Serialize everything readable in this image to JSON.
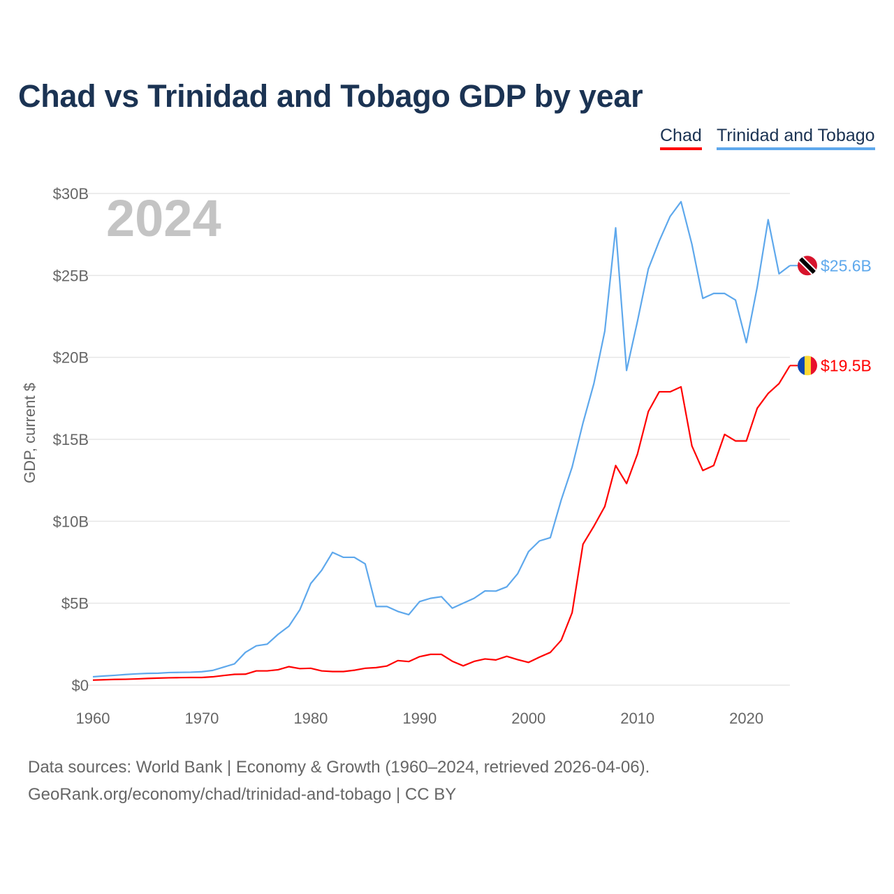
{
  "chart_data": {
    "type": "line",
    "title": "Chad vs Trinidad and Tobago GDP by year",
    "ylabel": "GDP, current $",
    "xlabel": "",
    "year_watermark": "2024",
    "xlim": [
      1960,
      2024
    ],
    "ylim": [
      0,
      30
    ],
    "x_ticks": [
      1960,
      1970,
      1980,
      1990,
      2000,
      2010,
      2020
    ],
    "y_ticks": [
      0,
      5,
      10,
      15,
      20,
      25,
      30
    ],
    "y_tick_labels": [
      "$0",
      "$5B",
      "$10B",
      "$15B",
      "$20B",
      "$25B",
      "$30B"
    ],
    "grid": true,
    "legend_position": "top-right",
    "x": [
      1960,
      1961,
      1962,
      1963,
      1964,
      1965,
      1966,
      1967,
      1968,
      1969,
      1970,
      1971,
      1972,
      1973,
      1974,
      1975,
      1976,
      1977,
      1978,
      1979,
      1980,
      1981,
      1982,
      1983,
      1984,
      1985,
      1986,
      1987,
      1988,
      1989,
      1990,
      1991,
      1992,
      1993,
      1994,
      1995,
      1996,
      1997,
      1998,
      1999,
      2000,
      2001,
      2002,
      2003,
      2004,
      2005,
      2006,
      2007,
      2008,
      2009,
      2010,
      2011,
      2012,
      2013,
      2014,
      2015,
      2016,
      2017,
      2018,
      2019,
      2020,
      2021,
      2022,
      2023,
      2024
    ],
    "series": [
      {
        "name": "Chad",
        "color": "#ff0000",
        "end_label": "$19.5B",
        "flag": "chad-flag",
        "values": [
          0.31,
          0.33,
          0.35,
          0.36,
          0.38,
          0.41,
          0.43,
          0.45,
          0.46,
          0.47,
          0.47,
          0.51,
          0.59,
          0.66,
          0.67,
          0.87,
          0.87,
          0.94,
          1.13,
          1.01,
          1.03,
          0.87,
          0.83,
          0.83,
          0.91,
          1.03,
          1.07,
          1.17,
          1.5,
          1.44,
          1.74,
          1.88,
          1.88,
          1.46,
          1.18,
          1.45,
          1.6,
          1.54,
          1.76,
          1.56,
          1.39,
          1.71,
          2.0,
          2.74,
          4.42,
          8.6,
          9.7,
          10.9,
          13.4,
          12.3,
          14.1,
          16.7,
          17.9,
          17.9,
          18.2,
          14.6,
          13.1,
          13.4,
          15.3,
          14.9,
          14.9,
          16.9,
          17.8,
          18.4,
          19.5
        ]
      },
      {
        "name": "Trinidad and Tobago",
        "color": "#5ea8ec",
        "end_label": "$25.6B",
        "flag": "trinidad-flag",
        "values": [
          0.51,
          0.56,
          0.6,
          0.65,
          0.69,
          0.72,
          0.73,
          0.77,
          0.78,
          0.79,
          0.82,
          0.9,
          1.1,
          1.3,
          2.0,
          2.4,
          2.5,
          3.1,
          3.6,
          4.6,
          6.2,
          7.0,
          8.1,
          7.8,
          7.8,
          7.4,
          4.8,
          4.8,
          4.5,
          4.3,
          5.1,
          5.3,
          5.4,
          4.7,
          5.0,
          5.3,
          5.75,
          5.74,
          6.0,
          6.8,
          8.15,
          8.8,
          9.0,
          11.3,
          13.3,
          16.0,
          18.4,
          21.6,
          27.9,
          19.2,
          22.2,
          25.4,
          27.1,
          28.6,
          29.5,
          26.9,
          23.6,
          23.9,
          23.9,
          23.5,
          20.9,
          24.3,
          28.4,
          25.1,
          25.6
        ]
      }
    ]
  },
  "legend": {
    "chad": "Chad",
    "tt": "Trinidad and Tobago"
  },
  "footer": {
    "line1": "Data sources: World Bank | Economy & Growth (1960–2024, retrieved 2026-04-06).",
    "line2": "GeoRank.org/economy/chad/trinidad-and-tobago | CC BY"
  }
}
